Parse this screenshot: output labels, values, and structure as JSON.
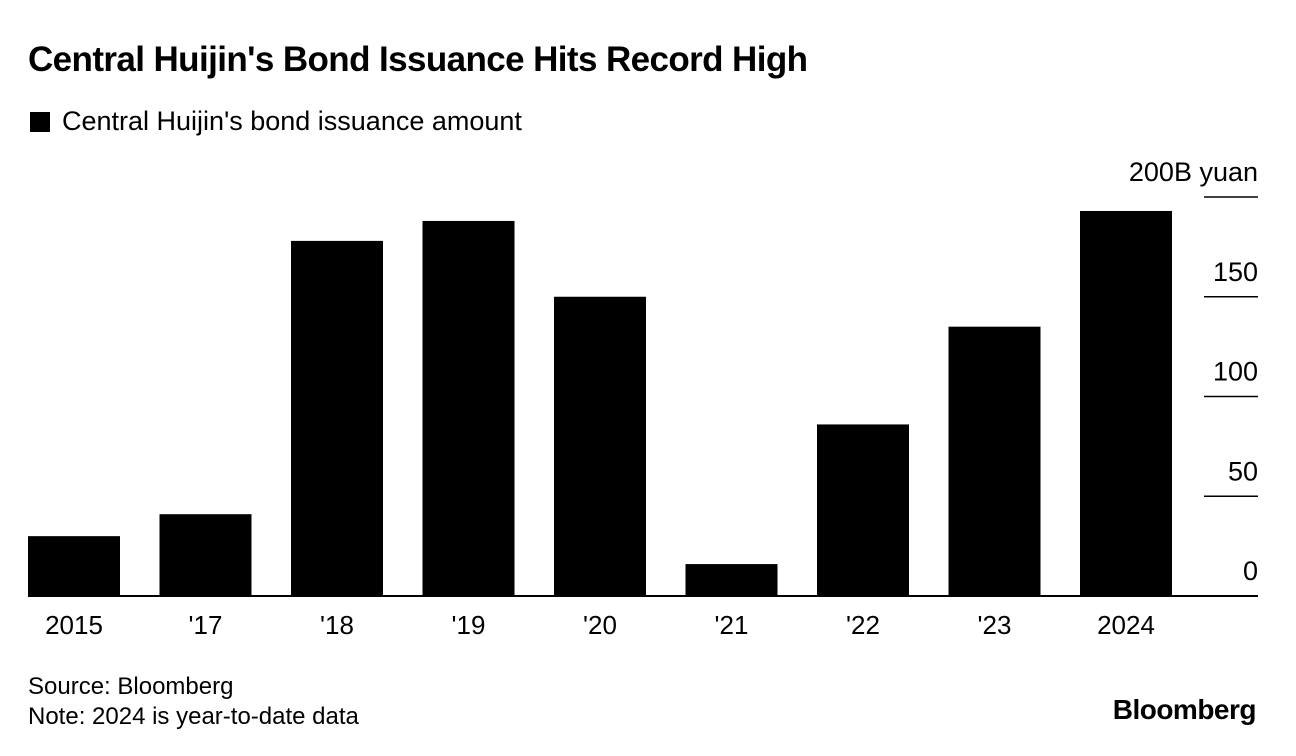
{
  "title": "Central Huijin's Bond Issuance Hits Record High",
  "legend_label": "Central Huijin's bond issuance amount",
  "source": "Source: Bloomberg",
  "note": "Note: 2024 is year-to-date data",
  "brand": "Bloomberg",
  "colors": {
    "bar": "#000000",
    "text": "#000000",
    "background": "#ffffff"
  },
  "chart_data": {
    "type": "bar",
    "title": "Central Huijin's Bond Issuance Hits Record High",
    "categories": [
      "2015",
      "'17",
      "'18",
      "'19",
      "'20",
      "'21",
      "'22",
      "'23",
      "2024"
    ],
    "series": [
      {
        "name": "Central Huijin's bond issuance amount",
        "values": [
          30,
          41,
          178,
          188,
          150,
          16,
          86,
          135,
          193
        ]
      }
    ],
    "ylim": [
      0,
      200
    ],
    "yticks": [
      0,
      50,
      100,
      150,
      200
    ],
    "ytick_labels": [
      "0",
      "50",
      "100",
      "150",
      "200B yuan"
    ],
    "y_axis_position": "right",
    "grid": false,
    "legend_position": "top-left"
  }
}
